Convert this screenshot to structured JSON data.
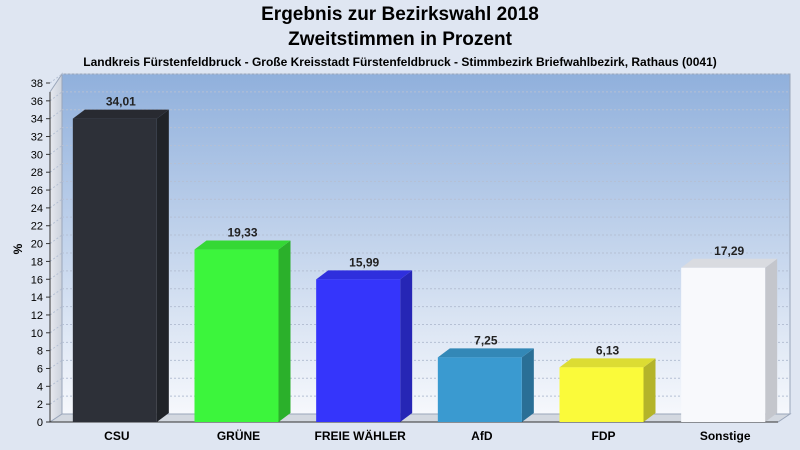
{
  "chart_data": {
    "type": "bar",
    "title": "Ergebnis zur Bezirkswahl 2018",
    "subtitle": "Zweitstimmen in Prozent",
    "caption": "Landkreis Fürstenfeldbruck - Große Kreisstadt Fürstenfeldbruck - Stimmbezirk Briefwahlbezirk, Rathaus (0041)",
    "xlabel": "",
    "ylabel": "%",
    "ylim": [
      0,
      38
    ],
    "ytick_step": 2,
    "grid": true,
    "categories": [
      "CSU",
      "GRÜNE",
      "FREIE WÄHLER",
      "AfD",
      "FDP",
      "Sonstige"
    ],
    "values": [
      34.01,
      19.33,
      15.99,
      7.25,
      6.13,
      17.29
    ],
    "value_labels": [
      "34,01",
      "19,33",
      "15,99",
      "7,25",
      "6,13",
      "17,29"
    ],
    "colors": [
      "#2d3038",
      "#3cf53c",
      "#3535fb",
      "#3a9ad0",
      "#fafa3a",
      "#f8f9fc"
    ]
  }
}
